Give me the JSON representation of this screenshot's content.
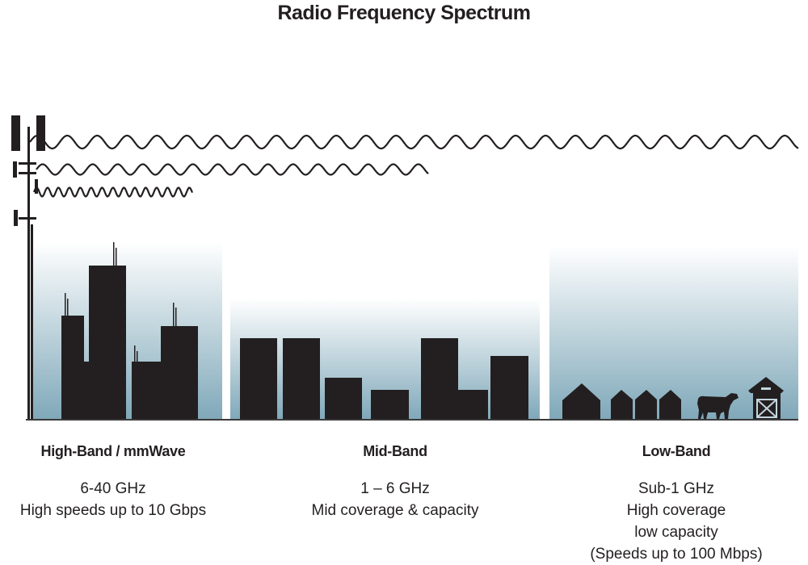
{
  "title": "Radio Frequency Spectrum",
  "colors": {
    "silhouette": "#231f20",
    "gradient_bottom": "#7fa8b9",
    "gradient_top": "#ffffff"
  },
  "bands": [
    {
      "name": "High-Band / mmWave",
      "lines": [
        "6-40 GHz",
        "High speeds up to 10 Gbps"
      ],
      "scene": "city-skyline"
    },
    {
      "name": "Mid-Band",
      "lines": [
        "1 – 6 GHz",
        "Mid coverage & capacity"
      ],
      "scene": "suburb-buildings"
    },
    {
      "name": "Low-Band",
      "lines": [
        "Sub-1 GHz",
        "High coverage",
        "low capacity",
        "(Speeds up to 100 Mbps)"
      ],
      "scene": "farm-houses-cow-barn"
    }
  ]
}
